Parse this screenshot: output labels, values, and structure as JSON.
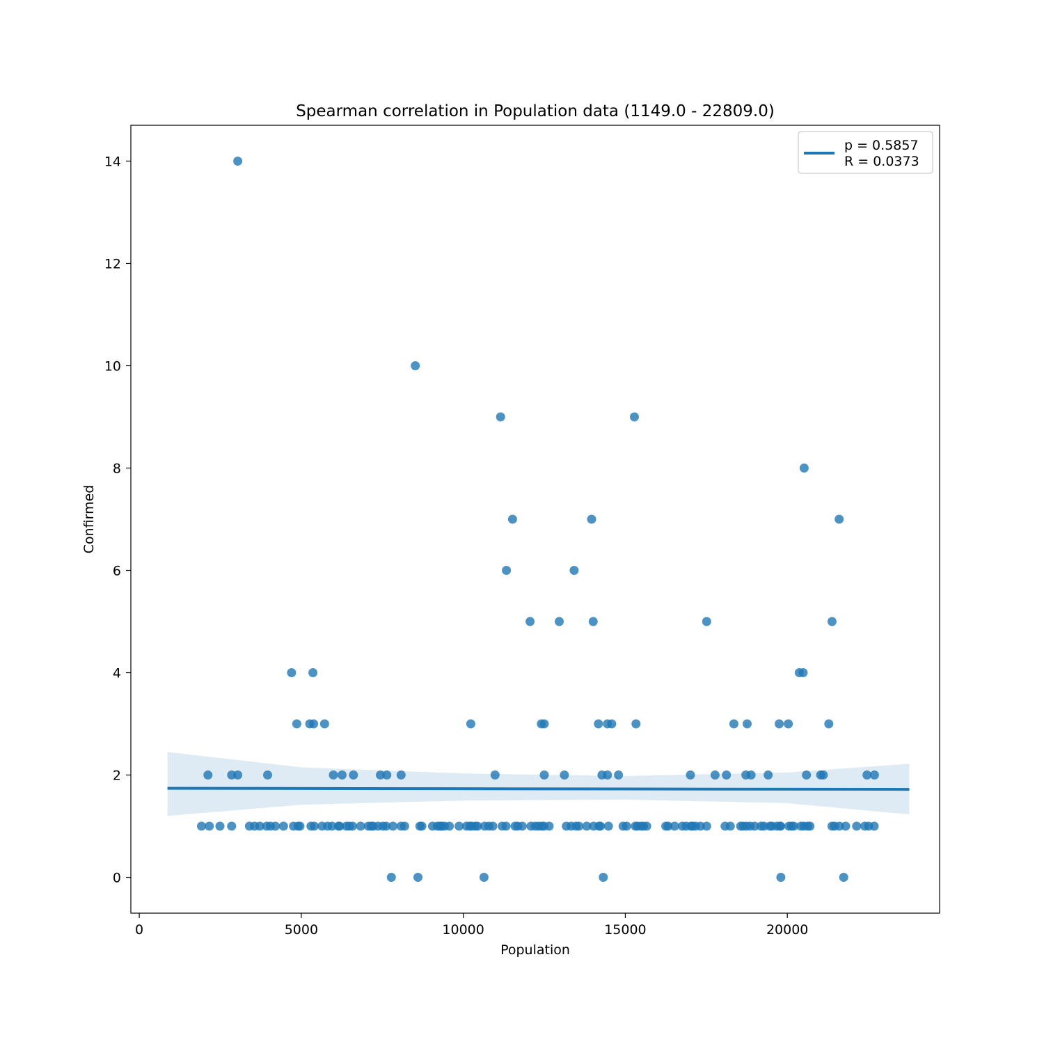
{
  "chart_data": {
    "type": "scatter",
    "title": "Spearman correlation in Population data (1149.0 - 22809.0)",
    "xlabel": "Population",
    "ylabel": "Confirmed",
    "xlim": [
      -260,
      24700
    ],
    "ylim": [
      -0.7,
      14.7
    ],
    "xticks": [
      0,
      5000,
      10000,
      15000,
      20000
    ],
    "yticks": [
      0,
      2,
      4,
      6,
      8,
      10,
      12,
      14
    ],
    "xtick_labels": [
      "0",
      "5000",
      "10000",
      "15000",
      "20000"
    ],
    "ytick_labels": [
      "0",
      "2",
      "4",
      "6",
      "8",
      "10",
      "12",
      "14"
    ],
    "grid": false,
    "legend_position": "upper right",
    "legend": {
      "line1": "p = 0.5857",
      "line2": "R = 0.0373"
    },
    "colors": {
      "points": "#1f77b4",
      "regression_line": "#1f77b4",
      "confidence_band": "#1f77b4"
    },
    "regression": {
      "x": [
        870,
        23765
      ],
      "y": [
        1.74,
        1.72
      ]
    },
    "confidence_band": {
      "x": [
        870,
        5000,
        10000,
        15000,
        20000,
        23765
      ],
      "upper": [
        2.45,
        2.15,
        2.03,
        1.98,
        2.05,
        2.22
      ],
      "lower": [
        1.2,
        1.42,
        1.5,
        1.52,
        1.45,
        1.23
      ]
    },
    "series": [
      {
        "x": [
          3040,
          8520,
          11150,
          15280,
          20520,
          11520,
          13960,
          21600,
          11330,
          13420,
          12060,
          12960,
          14010,
          17510,
          21380,
          4700,
          5360,
          20370,
          20490,
          4860,
          5260,
          5380,
          5720,
          10230,
          12410,
          12500,
          14170,
          14450,
          14580,
          15330,
          18350,
          18760,
          19750,
          20030,
          21280,
          2120,
          2850,
          3040,
          3960,
          5990,
          6260,
          6610,
          7440,
          7640,
          8080,
          10980,
          12500,
          13120,
          14280,
          14450,
          14790,
          17010,
          17770,
          18120,
          18720,
          18880,
          19410,
          20590,
          21030,
          21110,
          22460,
          22690,
          7780,
          8600,
          10640,
          14320,
          19800,
          21740
        ],
        "y": [
          14,
          10,
          9,
          9,
          8,
          7,
          7,
          7,
          6,
          6,
          5,
          5,
          5,
          5,
          5,
          4,
          4,
          4,
          4,
          3,
          3,
          3,
          3,
          3,
          3,
          3,
          3,
          3,
          3,
          3,
          3,
          3,
          3,
          3,
          3,
          2,
          2,
          2,
          2,
          2,
          2,
          2,
          2,
          2,
          2,
          2,
          2,
          2,
          2,
          2,
          2,
          2,
          2,
          2,
          2,
          2,
          2,
          2,
          2,
          2,
          2,
          2,
          0,
          0,
          0,
          0,
          0,
          0
        ],
        "x_at_y1": [
          1920,
          2160,
          2490,
          2850,
          3400,
          3560,
          3720,
          3930,
          4050,
          4200,
          4450,
          4760,
          4900,
          4960,
          5300,
          5400,
          5640,
          5810,
          5950,
          6150,
          6180,
          6390,
          6480,
          6580,
          6830,
          7070,
          7160,
          7220,
          7370,
          7520,
          7620,
          7830,
          8080,
          8190,
          8660,
          8720,
          9050,
          9200,
          9280,
          9330,
          9420,
          9570,
          9870,
          10100,
          10200,
          10260,
          10370,
          10440,
          10660,
          10790,
          10910,
          11200,
          11320,
          11600,
          11680,
          11820,
          12090,
          12220,
          12320,
          12420,
          12490,
          12650,
          13180,
          13330,
          13480,
          13570,
          13810,
          14020,
          14190,
          14230,
          14480,
          14930,
          15040,
          15310,
          15380,
          15490,
          15560,
          15660,
          16250,
          16320,
          16520,
          16760,
          16880,
          17030,
          17070,
          17170,
          17320,
          17510,
          18080,
          18240,
          18560,
          18640,
          18740,
          18850,
          18990,
          19190,
          19280,
          19460,
          19530,
          19680,
          19780,
          19790,
          20050,
          20130,
          20200,
          20420,
          20510,
          20630,
          20700,
          21380,
          21460,
          21610,
          21800,
          22140,
          22390,
          22510,
          22680
        ]
      }
    ]
  }
}
